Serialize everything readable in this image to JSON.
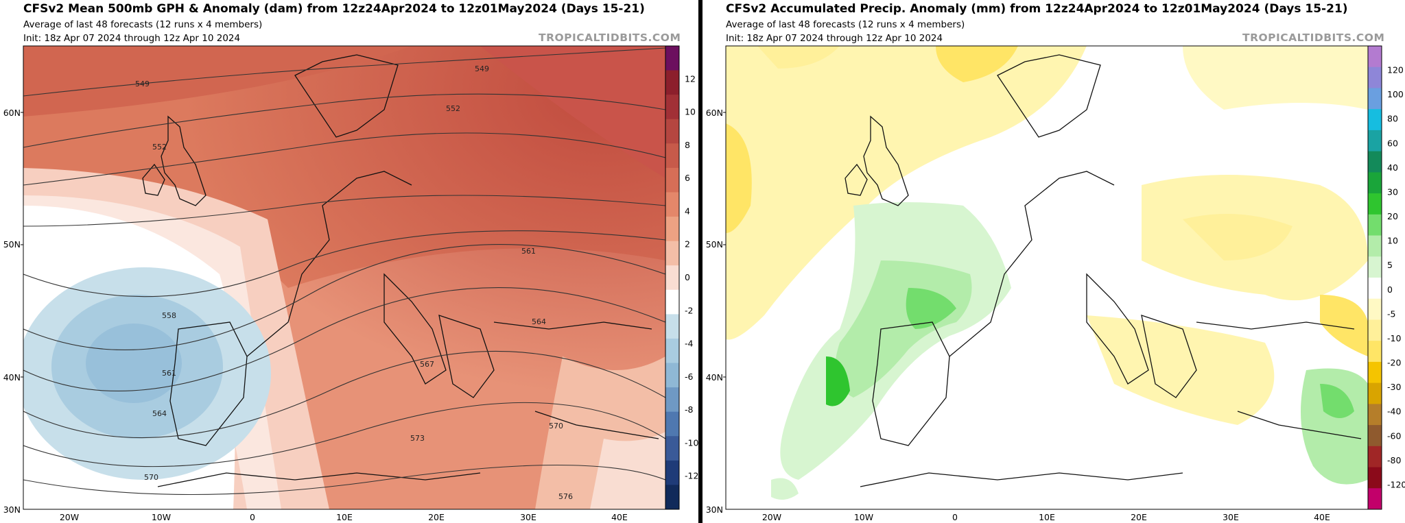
{
  "left_panel": {
    "title": "CFSv2 Mean 500mb GPH & Anomaly (dam) from 12z24Apr2024 to 12z01May2024 (Days 15-21)",
    "subtitle": "Average of last 48 forecasts (12 runs x 4 members)",
    "init": "Init: 18z Apr 07 2024 through 12z Apr 10 2024",
    "brand": "TROPICALTIDBITS.COM",
    "colorbar_labels": [
      "12",
      "10",
      "8",
      "6",
      "4",
      "2",
      "0",
      "-2",
      "-4",
      "-6",
      "-8",
      "-10",
      "-12"
    ],
    "contour_labels": [
      "549",
      "552",
      "549",
      "552",
      "558",
      "561",
      "564",
      "570",
      "573",
      "576",
      "561",
      "564",
      "567",
      "570"
    ]
  },
  "right_panel": {
    "title": "CFSv2 Accumulated Precip. Anomaly (mm) from 12z24Apr2024 to 12z01May2024 (Days 15-21)",
    "subtitle": "Average of last 48 forecasts (12 runs x 4 members)",
    "init": "Init: 18z Apr 07 2024 through 12z Apr 10 2024",
    "brand": "TROPICALTIDBITS.COM",
    "colorbar_labels": [
      "120",
      "100",
      "80",
      "60",
      "40",
      "30",
      "20",
      "10",
      "5",
      "0",
      "-5",
      "-10",
      "-20",
      "-30",
      "-40",
      "-60",
      "-80",
      "-120"
    ]
  },
  "lat_labels": [
    "60N",
    "50N",
    "40N",
    "30N"
  ],
  "lon_labels": [
    "20W",
    "10W",
    "0",
    "10E",
    "20E",
    "30E",
    "40E"
  ],
  "colors": {
    "gph_positive": [
      "#f9ddd2",
      "#f3bea7",
      "#eda283",
      "#e4876a",
      "#d66e57",
      "#c75a4a",
      "#b54640",
      "#a13036",
      "#8c1f2c",
      "#6c0f5e"
    ],
    "gph_negative": [
      "#c7dfea",
      "#a9cce0",
      "#8fb8d5",
      "#6f99c4",
      "#4f78b0",
      "#3a5a98",
      "#1f3b78",
      "#112a5a"
    ],
    "precip_positive": [
      "#d7f5d0",
      "#b3ecaa",
      "#73dd6d",
      "#2fc52f",
      "#1aa53a",
      "#138a5a",
      "#1aa3a3",
      "#16bde0",
      "#6a9fe0",
      "#8e86d8",
      "#b37bd0"
    ],
    "precip_negative": [
      "#fff9c4",
      "#fff09a",
      "#ffe566",
      "#f5c400",
      "#d9a400",
      "#b57e2a",
      "#8f5a2e",
      "#a02626",
      "#8b0a1a",
      "#c2006a"
    ]
  }
}
